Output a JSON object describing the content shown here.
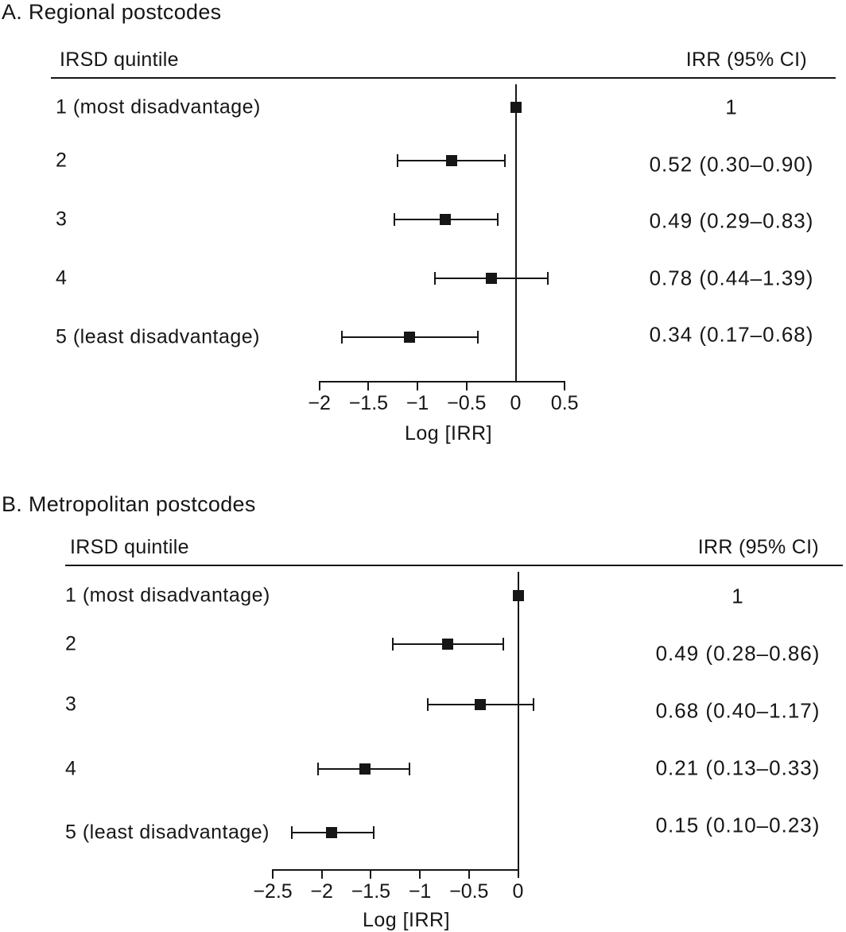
{
  "colors": {
    "ink": "#161616",
    "background": "#ffffff"
  },
  "chart_data": [
    {
      "type": "scatter",
      "variant": "forest-plot",
      "title": "A. Regional postcodes",
      "left_header": "IRSD quintile",
      "right_header": "IRR (95% CI)",
      "xlabel": "Log [IRR]",
      "x_scale": "natural log of IRR",
      "xlim": [
        -2,
        0.5
      ],
      "xticks": [
        -2,
        -1.5,
        -1,
        -0.5,
        0,
        0.5
      ],
      "xtick_labels": [
        "−2",
        "−1.5",
        "−1",
        "−0.5",
        "0",
        "0.5"
      ],
      "reference_log_irr": 0,
      "rows": [
        {
          "label": "1 (most disadvantage)",
          "irr": 1,
          "ci_low": null,
          "ci_high": null,
          "irr_label": "1"
        },
        {
          "label": "2",
          "irr": 0.52,
          "ci_low": 0.3,
          "ci_high": 0.9,
          "irr_label": "0.52 (0.30–0.90)"
        },
        {
          "label": "3",
          "irr": 0.49,
          "ci_low": 0.29,
          "ci_high": 0.83,
          "irr_label": "0.49 (0.29–0.83)"
        },
        {
          "label": "4",
          "irr": 0.78,
          "ci_low": 0.44,
          "ci_high": 1.39,
          "irr_label": "0.78 (0.44–1.39)"
        },
        {
          "label": "5 (least disadvantage)",
          "irr": 0.34,
          "ci_low": 0.17,
          "ci_high": 0.68,
          "irr_label": "0.34 (0.17–0.68)"
        }
      ]
    },
    {
      "type": "scatter",
      "variant": "forest-plot",
      "title": "B. Metropolitan postcodes",
      "left_header": "IRSD quintile",
      "right_header": "IRR (95% CI)",
      "xlabel": "Log [IRR]",
      "x_scale": "natural log of IRR",
      "xlim": [
        -2.5,
        0
      ],
      "xticks": [
        -2.5,
        -2,
        -1.5,
        -1,
        -0.5,
        0
      ],
      "xtick_labels": [
        "−2.5",
        "−2",
        "−1.5",
        "−1",
        "−0.5",
        "0"
      ],
      "reference_log_irr": 0,
      "rows": [
        {
          "label": "1 (most disadvantage)",
          "irr": 1,
          "ci_low": null,
          "ci_high": null,
          "irr_label": "1"
        },
        {
          "label": "2",
          "irr": 0.49,
          "ci_low": 0.28,
          "ci_high": 0.86,
          "irr_label": "0.49 (0.28–0.86)"
        },
        {
          "label": "3",
          "irr": 0.68,
          "ci_low": 0.4,
          "ci_high": 1.17,
          "irr_label": "0.68 (0.40–1.17)"
        },
        {
          "label": "4",
          "irr": 0.21,
          "ci_low": 0.13,
          "ci_high": 0.33,
          "irr_label": "0.21 (0.13–0.33)"
        },
        {
          "label": "5 (least disadvantage)",
          "irr": 0.15,
          "ci_low": 0.1,
          "ci_high": 0.23,
          "irr_label": "0.15 (0.10–0.23)"
        }
      ]
    }
  ]
}
